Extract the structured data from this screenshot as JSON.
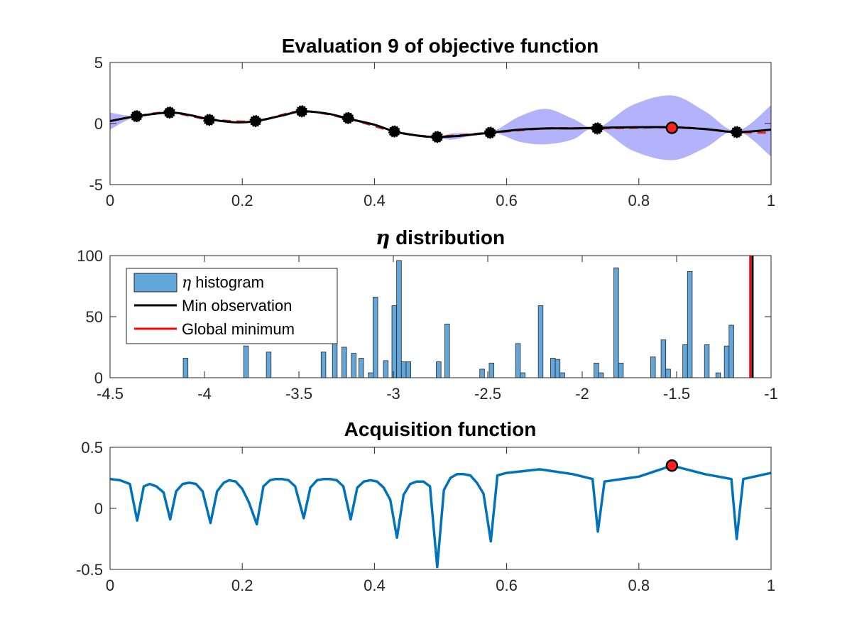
{
  "chart_data": [
    {
      "type": "line",
      "title": "Evaluation 9 of objective function",
      "xlim": [
        0,
        1
      ],
      "ylim": [
        -5,
        5
      ],
      "xticks": [
        0,
        0.2,
        0.4,
        0.6,
        0.8,
        1
      ],
      "xtick_labels": [
        "0",
        "0.2",
        "0.4",
        "0.6",
        "0.8",
        "1"
      ],
      "yticks": [
        -5,
        0,
        5
      ],
      "ytick_labels": [
        "-5",
        "0",
        "5"
      ],
      "grid": false,
      "colors": {
        "band": "#b3b3fb",
        "mean": "#000000",
        "true_function": "#e32222",
        "observation": "#000000",
        "next_point": "#ff2020"
      },
      "series": [
        {
          "role": "confidence-band",
          "x": [
            0,
            0.04,
            0.09,
            0.15,
            0.22,
            0.29,
            0.36,
            0.43,
            0.49,
            0.52,
            0.575,
            0.62,
            0.66,
            0.7,
            0.737,
            0.79,
            0.85,
            0.9,
            0.948,
            1.0
          ],
          "upper": [
            0.9,
            0.6,
            0.9,
            0.3,
            0.2,
            1.0,
            0.4,
            -0.6,
            -1.1,
            -0.8,
            -0.7,
            0.6,
            1.2,
            0.4,
            -0.35,
            1.5,
            2.3,
            1.0,
            -0.6,
            1.5
          ],
          "lower": [
            -0.5,
            0.6,
            0.9,
            0.3,
            0.2,
            1.0,
            0.4,
            -0.6,
            -1.1,
            -1.3,
            -0.7,
            -1.5,
            -1.7,
            -1.3,
            -0.35,
            -2.2,
            -3.0,
            -2.0,
            -0.6,
            -2.7
          ]
        },
        {
          "role": "true-function",
          "x": [
            0,
            0.04,
            0.09,
            0.15,
            0.22,
            0.29,
            0.36,
            0.43,
            0.49,
            0.575,
            0.66,
            0.737,
            0.79,
            0.85,
            0.9,
            0.948,
            1.0
          ],
          "y": [
            0.2,
            0.6,
            0.9,
            0.35,
            0.2,
            1.0,
            0.4,
            -0.65,
            -1.05,
            -0.75,
            -0.4,
            -0.4,
            -0.35,
            -0.3,
            -0.45,
            -0.7,
            -0.75
          ]
        },
        {
          "role": "mean",
          "x": [
            0,
            0.04,
            0.09,
            0.12,
            0.15,
            0.19,
            0.22,
            0.26,
            0.29,
            0.33,
            0.36,
            0.4,
            0.43,
            0.46,
            0.49,
            0.53,
            0.575,
            0.62,
            0.66,
            0.7,
            0.737,
            0.79,
            0.85,
            0.9,
            0.948,
            1.0
          ],
          "y": [
            0.2,
            0.6,
            0.9,
            0.7,
            0.35,
            0.1,
            0.2,
            0.65,
            1.0,
            0.8,
            0.4,
            -0.1,
            -0.65,
            -0.95,
            -1.1,
            -1.0,
            -0.75,
            -0.5,
            -0.4,
            -0.4,
            -0.35,
            -0.3,
            -0.3,
            -0.45,
            -0.7,
            -0.5
          ]
        },
        {
          "role": "observations",
          "x": [
            0.04,
            0.09,
            0.15,
            0.22,
            0.29,
            0.36,
            0.43,
            0.495,
            0.575,
            0.737,
            0.948
          ],
          "y": [
            0.6,
            0.9,
            0.3,
            0.2,
            1.0,
            0.45,
            -0.65,
            -1.1,
            -0.75,
            -0.4,
            -0.7
          ]
        },
        {
          "role": "next-point",
          "x": [
            0.85
          ],
          "y": [
            -0.35
          ]
        }
      ]
    },
    {
      "type": "bar",
      "title_symbol": "η",
      "title_text": " distribution",
      "xlim": [
        -4.5,
        -1
      ],
      "ylim": [
        0,
        100
      ],
      "xticks": [
        -4.5,
        -4,
        -3.5,
        -3,
        -2.5,
        -2,
        -1.5,
        -1
      ],
      "xtick_labels": [
        "-4.5",
        "-4",
        "-3.5",
        "-3",
        "-2.5",
        "-2",
        "-1.5",
        "-1"
      ],
      "yticks": [
        0,
        50,
        100
      ],
      "ytick_labels": [
        "0",
        "50",
        "100"
      ],
      "grid": false,
      "bin_width": 0.025,
      "bar_color": "#62a6da",
      "bins": [
        {
          "x": -4.1,
          "y": 16
        },
        {
          "x": -3.78,
          "y": 26
        },
        {
          "x": -3.66,
          "y": 21
        },
        {
          "x": -3.37,
          "y": 21
        },
        {
          "x": -3.31,
          "y": 30
        },
        {
          "x": -3.26,
          "y": 25
        },
        {
          "x": -3.21,
          "y": 20
        },
        {
          "x": -3.17,
          "y": 16
        },
        {
          "x": -3.12,
          "y": 4
        },
        {
          "x": -3.095,
          "y": 66
        },
        {
          "x": -3.04,
          "y": 14
        },
        {
          "x": -2.995,
          "y": 59
        },
        {
          "x": -2.97,
          "y": 96
        },
        {
          "x": -2.945,
          "y": 13
        },
        {
          "x": -2.92,
          "y": 13
        },
        {
          "x": -2.76,
          "y": 13
        },
        {
          "x": -2.715,
          "y": 44
        },
        {
          "x": -2.53,
          "y": 7
        },
        {
          "x": -2.48,
          "y": 12
        },
        {
          "x": -2.34,
          "y": 28
        },
        {
          "x": -2.315,
          "y": 4
        },
        {
          "x": -2.22,
          "y": 59
        },
        {
          "x": -2.155,
          "y": 16
        },
        {
          "x": -2.13,
          "y": 15
        },
        {
          "x": -2.105,
          "y": 4
        },
        {
          "x": -1.925,
          "y": 12
        },
        {
          "x": -1.9,
          "y": 4
        },
        {
          "x": -1.82,
          "y": 90
        },
        {
          "x": -1.795,
          "y": 12
        },
        {
          "x": -1.625,
          "y": 17
        },
        {
          "x": -1.57,
          "y": 31
        },
        {
          "x": -1.545,
          "y": 7
        },
        {
          "x": -1.455,
          "y": 27
        },
        {
          "x": -1.43,
          "y": 87
        },
        {
          "x": -1.34,
          "y": 27
        },
        {
          "x": -1.28,
          "y": 4
        },
        {
          "x": -1.235,
          "y": 26
        },
        {
          "x": -1.21,
          "y": 43
        }
      ],
      "lines": [
        {
          "name": "Min observation",
          "x": -1.098,
          "color": "#000000"
        },
        {
          "name": "Global minimum",
          "x": -1.11,
          "color": "#ff0000"
        }
      ],
      "legend": {
        "placement": "top-left",
        "entries": [
          {
            "symbol": "η",
            "label": " histogram",
            "kind": "patch",
            "color": "#62a6da"
          },
          {
            "label": "Min observation",
            "kind": "line",
            "color": "#000000"
          },
          {
            "label": "Global minimum",
            "kind": "line",
            "color": "#ff0000"
          }
        ]
      }
    },
    {
      "type": "line",
      "title": "Acquisition function",
      "xlim": [
        0,
        1
      ],
      "ylim": [
        -0.5,
        0.5
      ],
      "xticks": [
        0,
        0.2,
        0.4,
        0.6,
        0.8,
        1
      ],
      "xtick_labels": [
        "0",
        "0.2",
        "0.4",
        "0.6",
        "0.8",
        "1"
      ],
      "yticks": [
        -0.5,
        0,
        0.5
      ],
      "ytick_labels": [
        "-0.5",
        "0",
        "0.5"
      ],
      "grid": false,
      "colors": {
        "line": "#0072bd",
        "max_point": "#ff2020"
      },
      "series": [
        {
          "role": "acquisition",
          "x": [
            0,
            0.015,
            0.03,
            0.041,
            0.051,
            0.06,
            0.07,
            0.081,
            0.091,
            0.1,
            0.11,
            0.12,
            0.13,
            0.14,
            0.152,
            0.162,
            0.172,
            0.18,
            0.19,
            0.2,
            0.21,
            0.222,
            0.232,
            0.242,
            0.25,
            0.26,
            0.27,
            0.28,
            0.293,
            0.303,
            0.313,
            0.323,
            0.333,
            0.343,
            0.353,
            0.364,
            0.374,
            0.384,
            0.394,
            0.404,
            0.414,
            0.424,
            0.434,
            0.444,
            0.454,
            0.464,
            0.474,
            0.484,
            0.495,
            0.505,
            0.515,
            0.525,
            0.535,
            0.545,
            0.555,
            0.565,
            0.576,
            0.586,
            0.6,
            0.65,
            0.7,
            0.73,
            0.738,
            0.748,
            0.8,
            0.85,
            0.9,
            0.94,
            0.948,
            0.958,
            1.0
          ],
          "y": [
            0.24,
            0.23,
            0.2,
            -0.1,
            0.18,
            0.2,
            0.18,
            0.13,
            -0.09,
            0.14,
            0.2,
            0.21,
            0.2,
            0.14,
            -0.12,
            0.14,
            0.21,
            0.23,
            0.22,
            0.16,
            0.05,
            -0.13,
            0.18,
            0.23,
            0.24,
            0.24,
            0.23,
            0.18,
            -0.08,
            0.17,
            0.23,
            0.24,
            0.24,
            0.23,
            0.18,
            -0.09,
            0.17,
            0.22,
            0.23,
            0.22,
            0.17,
            0.07,
            -0.24,
            0.11,
            0.2,
            0.22,
            0.22,
            0.18,
            -0.48,
            0.15,
            0.25,
            0.28,
            0.28,
            0.27,
            0.21,
            0.12,
            -0.27,
            0.27,
            0.29,
            0.32,
            0.28,
            0.24,
            -0.19,
            0.22,
            0.26,
            0.35,
            0.28,
            0.24,
            -0.25,
            0.24,
            0.29
          ]
        },
        {
          "role": "max-point",
          "x": [
            0.85
          ],
          "y": [
            0.35
          ]
        }
      ]
    }
  ]
}
